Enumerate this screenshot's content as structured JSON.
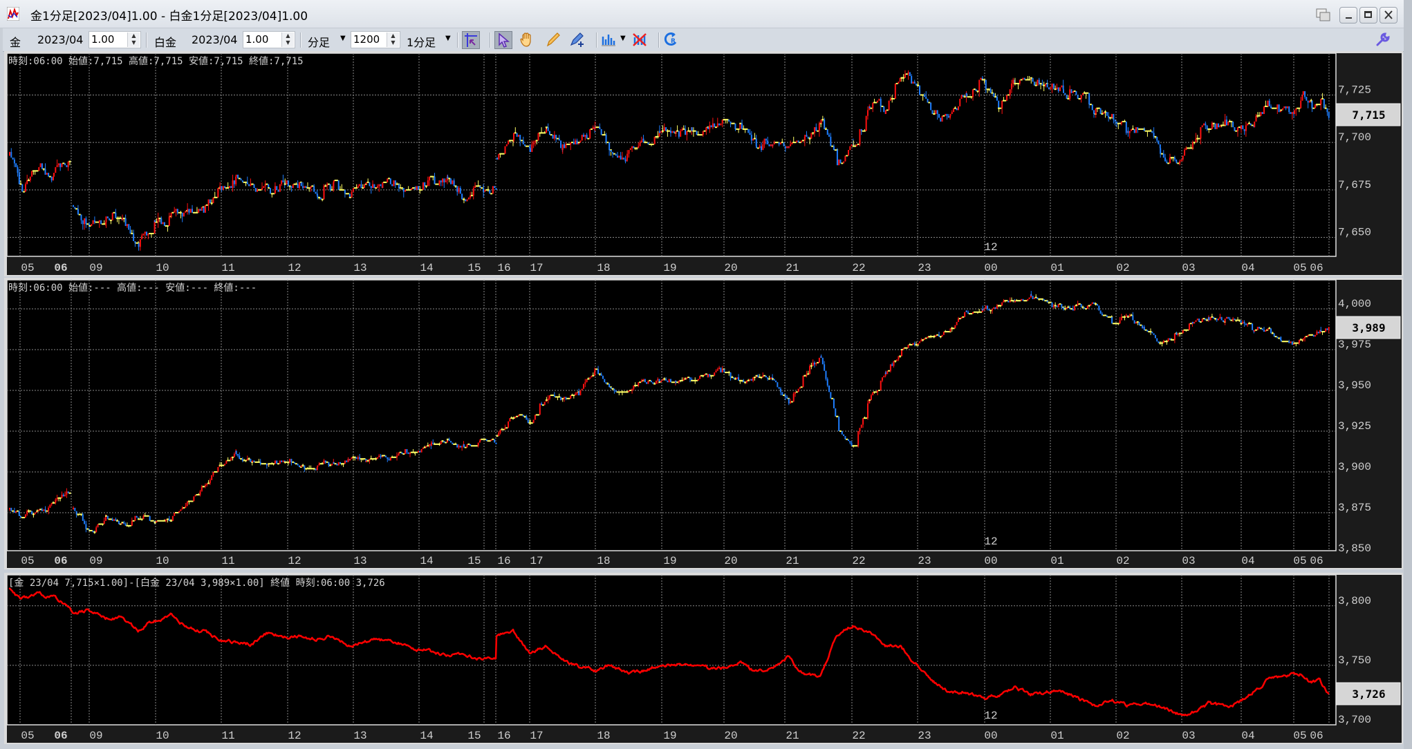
{
  "window": {
    "title": "金1分足[2023/04]1.00 - 白金1分足[2023/04]1.00",
    "buttons": [
      "restore-tile",
      "minimize",
      "maximize",
      "close"
    ]
  },
  "toolbar": {
    "gold_label": "金",
    "gold_month": "2023/04",
    "gold_multiplier": "1.00",
    "platinum_label": "白金",
    "platinum_month": "2023/04",
    "platinum_multiplier": "1.00",
    "period_unit": "分足",
    "bar_count": "1200",
    "timeframe": "1分足",
    "icons": [
      "crosshair-cursor-icon",
      "pointer-icon",
      "hand-pan-icon",
      "pencil-icon",
      "line-pen-icon",
      "bar-chart-icon",
      "delete-drawing-icon",
      "refresh-icon",
      "wrench-icon"
    ]
  },
  "panels": [
    {
      "info": "時刻:06:00 始値:7,715 高値:7,715 安値:7,715 終値:7,715",
      "day_marker": "12",
      "current_value": "7,715"
    },
    {
      "info": "時刻:06:00 始値:--- 高値:--- 安値:--- 終値:---",
      "day_marker": "12",
      "current_value": "3,989"
    },
    {
      "info": "[金 23/04 7,715×1.00]-[白金 23/04 3,989×1.00] 終値 時刻:06:00 3,726",
      "day_marker": "12",
      "current_value": "3,726"
    }
  ],
  "colors": {
    "up": "#ff1010",
    "down": "#1e7eff",
    "unchanged": "#ffff66",
    "spread_line": "#ff0000",
    "background": "#000000",
    "grid": "#8a8a8a"
  },
  "chart_data": {
    "x_tick_labels": [
      "05",
      "06",
      "09",
      "10",
      "11",
      "12",
      "13",
      "14",
      "15",
      "16",
      "17",
      "18",
      "19",
      "20",
      "21",
      "22",
      "23",
      "00",
      "01",
      "02",
      "03",
      "04",
      "05",
      "06"
    ],
    "x": [
      "04:50",
      "05:00",
      "05:15",
      "05:30",
      "05:45",
      "08:45",
      "09:00",
      "09:15",
      "09:30",
      "09:45",
      "10:00",
      "10:15",
      "10:30",
      "10:45",
      "11:00",
      "11:15",
      "11:30",
      "11:45",
      "12:00",
      "12:15",
      "12:30",
      "12:45",
      "13:00",
      "13:15",
      "13:30",
      "13:45",
      "14:00",
      "14:15",
      "14:30",
      "14:45",
      "15:00",
      "15:15",
      "16:30",
      "16:45",
      "17:00",
      "17:15",
      "17:30",
      "17:45",
      "18:00",
      "18:15",
      "18:30",
      "18:45",
      "19:00",
      "19:15",
      "19:30",
      "19:45",
      "20:00",
      "20:15",
      "20:30",
      "20:45",
      "21:00",
      "21:15",
      "21:30",
      "21:45",
      "22:00",
      "22:15",
      "22:30",
      "22:45",
      "23:00",
      "23:15",
      "23:30",
      "23:45",
      "00:00",
      "00:15",
      "00:30",
      "00:45",
      "01:00",
      "01:15",
      "01:30",
      "01:45",
      "02:00",
      "02:15",
      "02:30",
      "02:45",
      "03:00",
      "03:15",
      "03:30",
      "03:45",
      "04:00",
      "04:15",
      "04:30",
      "04:45",
      "05:00",
      "05:15",
      "05:30",
      "05:45",
      "06:00"
    ],
    "panels": [
      {
        "type": "candlestick",
        "ylim": [
          7640,
          7747
        ],
        "y_ticks": [
          7725,
          7700,
          7675,
          7650
        ],
        "y_tick_labels": [
          "7,725",
          "7,700",
          "7,675",
          "7,650"
        ],
        "values": [
          7693,
          7676,
          7685,
          7684,
          7690,
          7667,
          7656,
          7660,
          7659,
          7646,
          7656,
          7660,
          7662,
          7666,
          7675,
          7681,
          7676,
          7674,
          7679,
          7677,
          7674,
          7677,
          7671,
          7677,
          7680,
          7678,
          7678,
          7679,
          7680,
          7672,
          7677,
          7676,
          7692,
          7704,
          7698,
          7710,
          7697,
          7700,
          7708,
          7694,
          7692,
          7700,
          7704,
          7706,
          7707,
          7708,
          7710,
          7708,
          7697,
          7701,
          7697,
          7700,
          7711,
          7690,
          7696,
          7720,
          7718,
          7740,
          7728,
          7715,
          7714,
          7726,
          7731,
          7718,
          7731,
          7733,
          7730,
          7728,
          7725,
          7716,
          7713,
          7707,
          7709,
          7694,
          7690,
          7702,
          7708,
          7709,
          7708,
          7712,
          7720,
          7717,
          7717,
          7725,
          7718,
          7720,
          7715
        ]
      },
      {
        "type": "candlestick",
        "ylim": [
          3851.7,
          4017.8
        ],
        "y_ticks": [
          4000,
          3975,
          3950,
          3925,
          3900,
          3875,
          3850
        ],
        "y_tick_labels": [
          "4,000",
          "3,975",
          "3,950",
          "3,925",
          "3,900",
          "3,875",
          "3,850"
        ],
        "values": [
          3877,
          3873,
          3876,
          3880,
          3889,
          3877,
          3862,
          3872,
          3868,
          3872,
          3870,
          3872,
          3880,
          3892,
          3903,
          3911,
          3905,
          3904,
          3907,
          3904,
          3903,
          3906,
          3907,
          3907,
          3909,
          3911,
          3913,
          3916,
          3920,
          3915,
          3919,
          3918,
          3922,
          3935,
          3931,
          3945,
          3945,
          3948,
          3962,
          3950,
          3949,
          3956,
          3956,
          3956,
          3957,
          3960,
          3961,
          3957,
          3957,
          3956,
          3941,
          3960,
          3970,
          3927,
          3917,
          3944,
          3960,
          3975,
          3980,
          3982,
          3988,
          3998,
          4000,
          4002,
          4005,
          4008,
          4003,
          4000,
          4003,
          4001,
          3992,
          3995,
          3989,
          3979,
          3984,
          3992,
          3994,
          3993,
          3990,
          3988,
          3986,
          3980,
          3979,
          3982,
          3985,
          3987,
          3989
        ]
      },
      {
        "type": "line",
        "ylim": [
          3700,
          3826
        ],
        "y_ticks": [
          3800,
          3750,
          3700
        ],
        "y_tick_labels": [
          "3,800",
          "3,750",
          "3,700"
        ],
        "values": [
          3814,
          3805,
          3810,
          3808,
          3800,
          3794,
          3796,
          3790,
          3790,
          3779,
          3788,
          3792,
          3782,
          3779,
          3771,
          3769,
          3768,
          3777,
          3774,
          3775,
          3772,
          3775,
          3766,
          3771,
          3771,
          3769,
          3764,
          3762,
          3759,
          3758,
          3756,
          3757,
          3775,
          3779,
          3761,
          3766,
          3754,
          3750,
          3745,
          3750,
          3744,
          3745,
          3750,
          3750,
          3751,
          3749,
          3748,
          3753,
          3744,
          3748,
          3757,
          3742,
          3740,
          3777,
          3784,
          3778,
          3767,
          3766,
          3750,
          3736,
          3727,
          3728,
          3722,
          3725,
          3732,
          3725,
          3728,
          3728,
          3722,
          3717,
          3721,
          3716,
          3718,
          3716,
          3709,
          3710,
          3717,
          3715,
          3719,
          3728,
          3737,
          3740,
          3742,
          3743,
          3735,
          3737,
          3726
        ]
      }
    ]
  }
}
